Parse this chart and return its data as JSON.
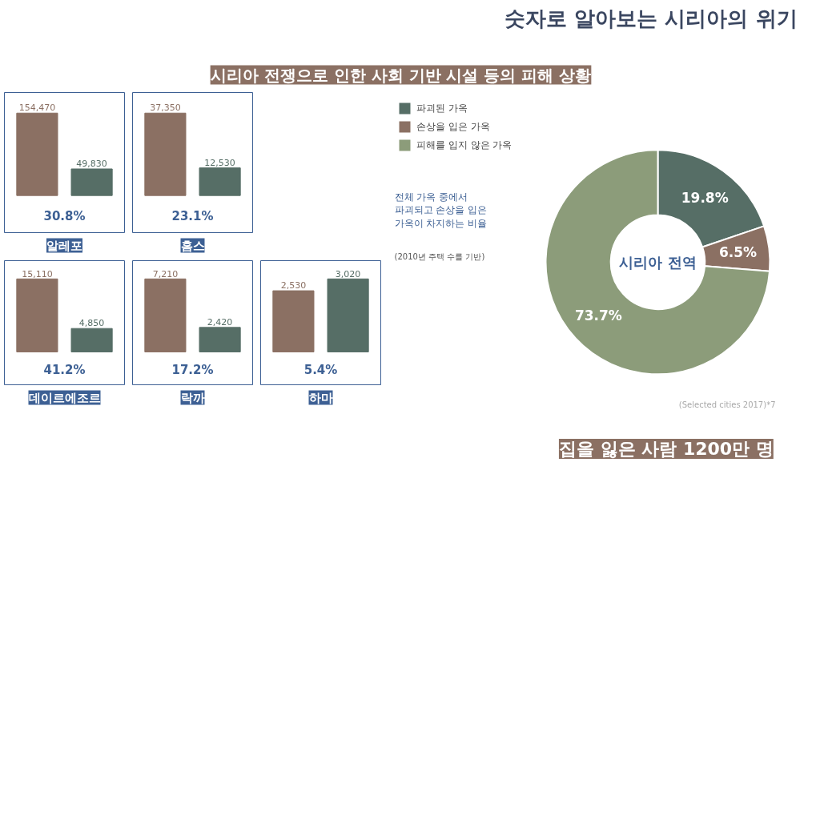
{
  "chart_data": [
    {
      "type": "other",
      "title": "숫자로 알아보는 시리아의 위기",
      "subtitle": "시리아 전쟁으로 인한 사회 기반 시설 등의 피해 상황"
    },
    {
      "type": "bar",
      "title": "알레포",
      "categories": [
        null,
        null
      ],
      "values": [
        154470,
        49830
      ],
      "colors": [
        "#8b7063",
        "#566e66"
      ],
      "value_labels": [
        "154,470",
        "49,830"
      ],
      "annotations": [
        "30.8%"
      ]
    },
    {
      "type": "bar",
      "title": "홈스",
      "categories": [
        null,
        null
      ],
      "values": [
        37350,
        12530
      ],
      "colors": [
        "#8b7063",
        "#566e66"
      ],
      "value_labels": [
        "37,350",
        "12,530"
      ],
      "annotations": [
        "23.1%"
      ]
    },
    {
      "type": "bar",
      "title": "데이르에조르",
      "categories": [
        null,
        null
      ],
      "values": [
        15110,
        4850
      ],
      "colors": [
        "#8b7063",
        "#566e66"
      ],
      "value_labels": [
        "15,110",
        "4,850"
      ],
      "annotations": [
        "41.2%"
      ]
    },
    {
      "type": "bar",
      "title": "락까",
      "categories": [
        null,
        null
      ],
      "values": [
        7210,
        2420
      ],
      "colors": [
        "#8b7063",
        "#566e66"
      ],
      "value_labels": [
        "7,210",
        "2,420"
      ],
      "annotations": [
        "17.2%"
      ]
    },
    {
      "type": "bar",
      "title": "하마",
      "categories": [
        null,
        null
      ],
      "values": [
        2530,
        3020
      ],
      "colors": [
        "#8b7063",
        "#566e66"
      ],
      "value_labels": [
        "2,530",
        "3,020"
      ],
      "annotations": [
        "5.4%"
      ]
    },
    {
      "type": "donut",
      "categories": [
        "파괴된 가옥",
        "손상을 입은 가옥",
        "피해를 입지 않은 가옥"
      ],
      "values": [
        19.8,
        6.5,
        73.7
      ],
      "colors": [
        "#566e66",
        "#8b7063",
        "#8c9c7a"
      ],
      "value_labels": [
        "19.8%",
        "6.5%",
        "73.7%"
      ],
      "legend": "left",
      "annotations": [
        "시리아 전역",
        "전체 가옥 중에서 파괴되고 손상을 입은 가옥이 차지하는 비율",
        "(2010년 주택 수를 기반)",
        "(Selected cities 2017)*7"
      ]
    },
    {
      "type": "other",
      "annotations": [
        "집을 잃은 사람 1200만 명"
      ]
    }
  ]
}
